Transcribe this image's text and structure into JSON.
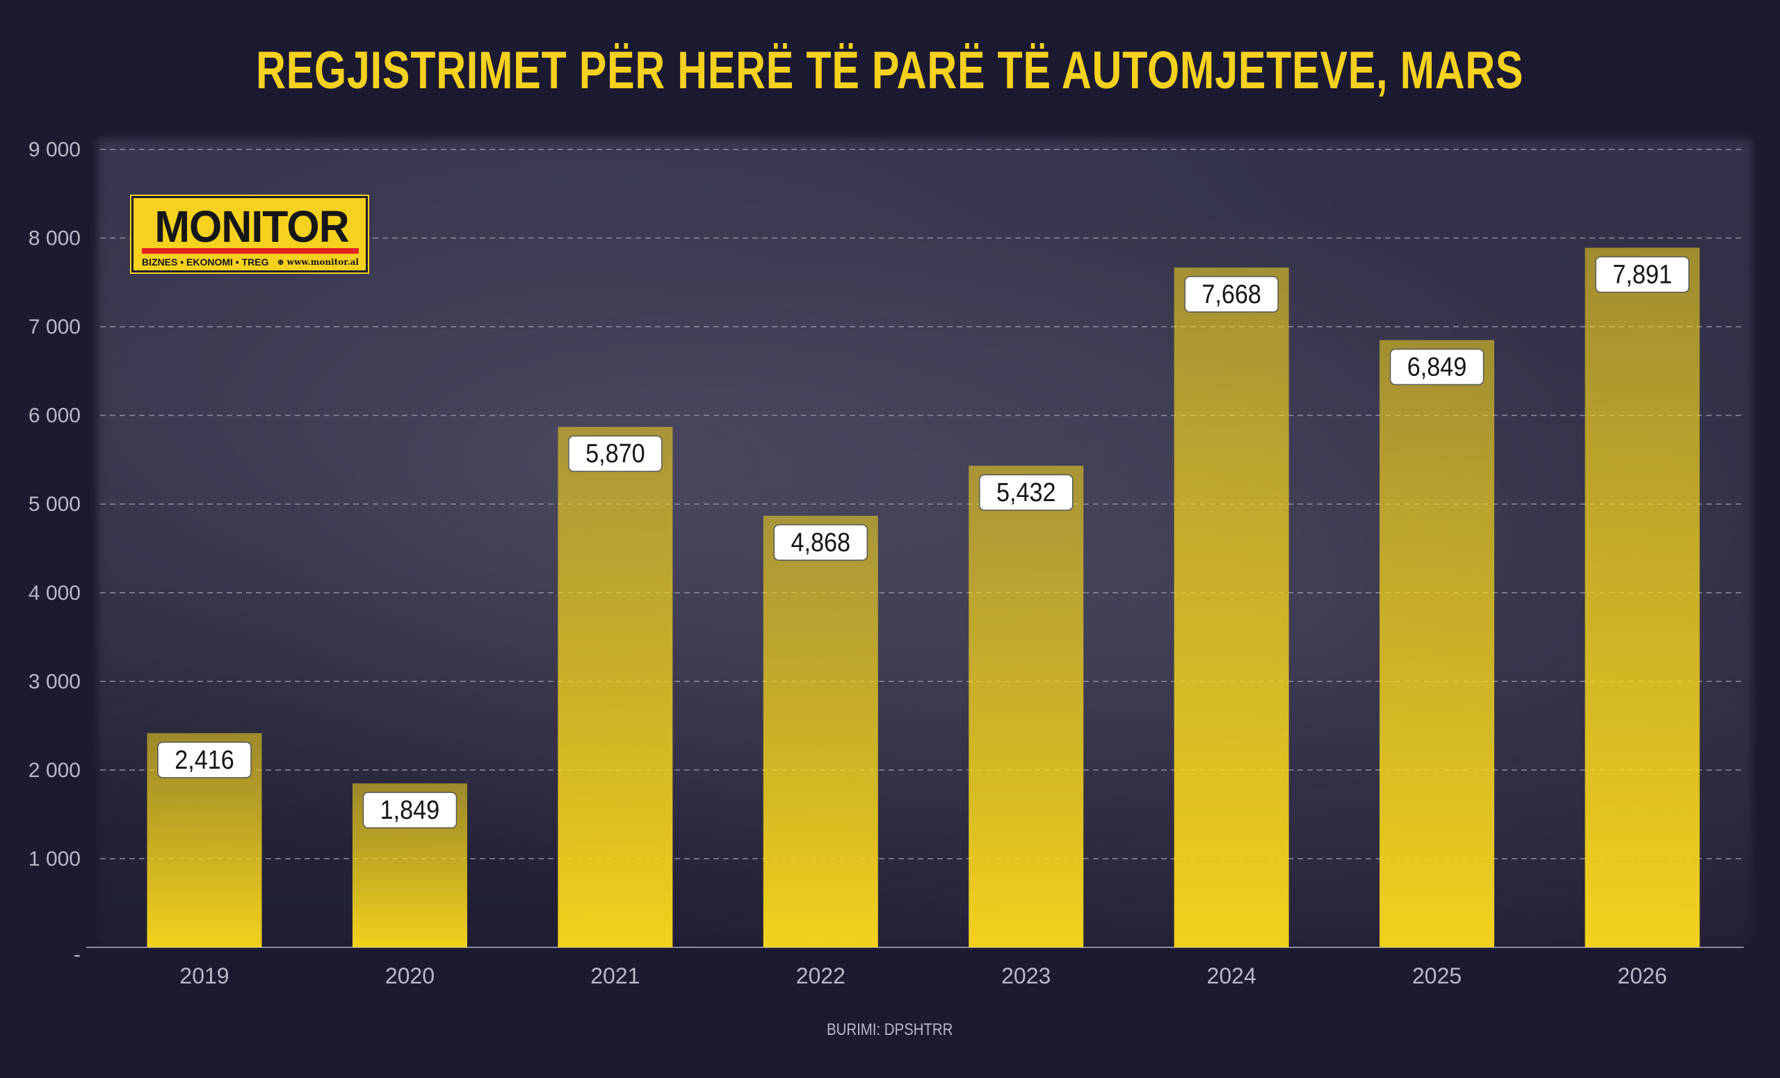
{
  "title": "REGJISTRIMET PËR HERË TË PARË TË AUTOMJETEVE, MARS",
  "source": "BURIMI: DPSHTRR",
  "logo": {
    "name": "MONITOR",
    "tagline": "BIZNES • EKONOMI • TREG",
    "url": "www.monitor.al"
  },
  "colors": {
    "background": "#1b1a30",
    "bar": "#f9d71c",
    "title": "#f6d11d",
    "label_box": "#ffffff"
  },
  "chart_data": {
    "type": "bar",
    "title": "REGJISTRIMET PËR HERË TË PARË TË AUTOMJETEVE, MARS",
    "categories": [
      "2019",
      "2020",
      "2021",
      "2022",
      "2023",
      "2024",
      "2025",
      "2026"
    ],
    "values": [
      2416,
      1849,
      5870,
      4868,
      5432,
      7668,
      6849,
      7891
    ],
    "data_labels": [
      "2,416",
      "1,849",
      "5,870",
      "4,868",
      "5,432",
      "7,668",
      "6,849",
      "7,891"
    ],
    "y_ticks": [
      0,
      1000,
      2000,
      3000,
      4000,
      5000,
      6000,
      7000,
      8000,
      9000
    ],
    "y_tick_labels": [
      "-",
      "1 000",
      "2 000",
      "3 000",
      "4 000",
      "5 000",
      "6 000",
      "7 000",
      "8 000",
      "9 000"
    ],
    "ylim": [
      0,
      9000
    ],
    "grid": true,
    "grid_style": "dashed",
    "legend": "none",
    "xlabel": "",
    "ylabel": ""
  }
}
